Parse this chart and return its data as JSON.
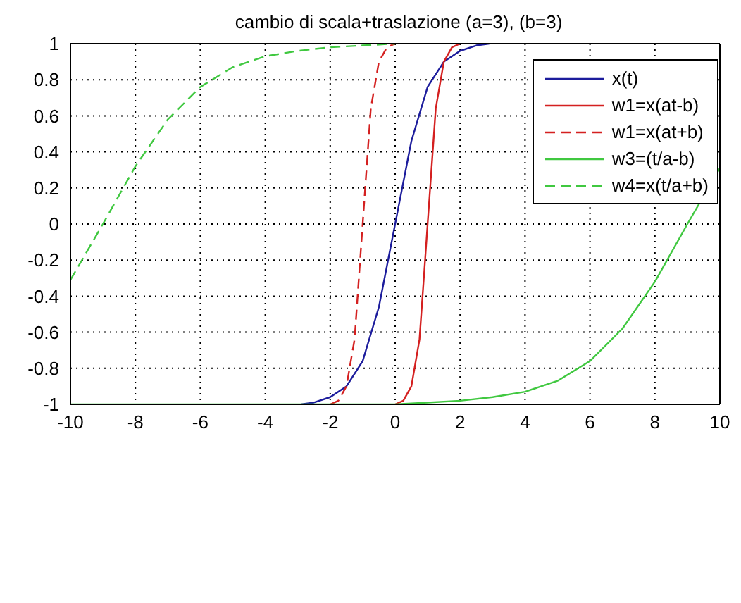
{
  "chart_data": {
    "type": "line",
    "title": "cambio di scala+traslazione (a=3), (b=3)",
    "xlim": [
      -10,
      10
    ],
    "xticks": [
      -10,
      -8,
      -6,
      -4,
      -2,
      0,
      2,
      4,
      6,
      8,
      10
    ],
    "ylim": [
      -1,
      1
    ],
    "yticks": [
      -1,
      -0.8,
      -0.6,
      -0.4,
      -0.2,
      0,
      0.2,
      0.4,
      0.6,
      0.8,
      1
    ],
    "grid": true,
    "legend": "top right",
    "marker": "none",
    "series": [
      {
        "name": "x(t)",
        "color": "#1c1c9c",
        "line_style": "solid",
        "x": [
          -2.9,
          -2.5,
          -2,
          -1.5,
          -1,
          -0.5,
          0,
          0.5,
          1,
          1.5,
          2,
          2.5,
          2.9
        ],
        "values": [
          -1,
          -0.99,
          -0.96,
          -0.9,
          -0.76,
          -0.46,
          0,
          0.46,
          0.76,
          0.9,
          0.96,
          0.99,
          1
        ]
      },
      {
        "name": "w1=x(at-b)",
        "color": "#d42020",
        "line_style": "solid",
        "x": [
          0,
          0.25,
          0.5,
          0.75,
          1,
          1.25,
          1.5,
          1.75,
          2
        ],
        "values": [
          -1,
          -0.98,
          -0.9,
          -0.64,
          0,
          0.64,
          0.9,
          0.98,
          1
        ]
      },
      {
        "name": "w1=x(at+b)",
        "color": "#d42020",
        "line_style": "dashed",
        "x": [
          -2,
          -1.75,
          -1.5,
          -1.25,
          -1,
          -0.75,
          -0.5,
          -0.25,
          0
        ],
        "values": [
          -1,
          -0.98,
          -0.9,
          -0.64,
          0,
          0.64,
          0.9,
          0.98,
          1
        ]
      },
      {
        "name": "w3=(t/a-b)",
        "color": "#40c840",
        "line_style": "solid",
        "x": [
          -10,
          0,
          1,
          2,
          3,
          4,
          5,
          6,
          7,
          8,
          9,
          10
        ],
        "values": [
          -1,
          -1,
          -0.99,
          -0.98,
          -0.96,
          -0.93,
          -0.87,
          -0.76,
          -0.58,
          -0.32,
          0,
          0.31
        ]
      },
      {
        "name": "w4=x(t/a+b)",
        "color": "#40c840",
        "line_style": "dashed",
        "x": [
          -10,
          -9,
          -8,
          -7,
          -6,
          -5,
          -4,
          -3,
          -2,
          -1,
          0
        ],
        "values": [
          -0.31,
          0,
          0.32,
          0.58,
          0.76,
          0.87,
          0.93,
          0.96,
          0.98,
          0.99,
          1
        ]
      }
    ]
  }
}
